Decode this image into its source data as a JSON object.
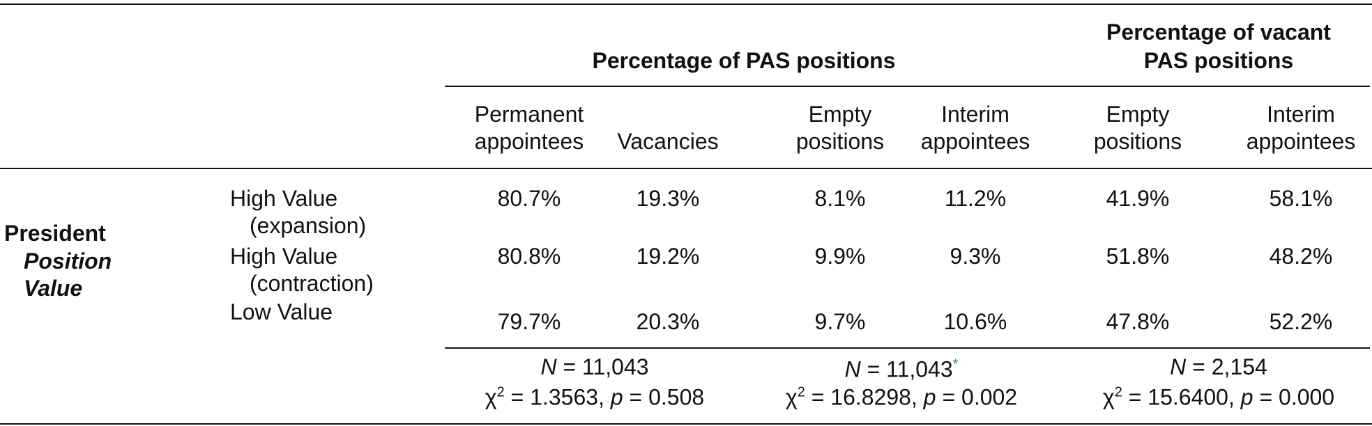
{
  "group_headers": [
    [
      "Percentage of PAS positions"
    ],
    [
      "Percentage of vacant",
      "PAS positions"
    ]
  ],
  "column_headers": [
    [
      "Permanent",
      "appointees"
    ],
    [
      "Vacancies"
    ],
    [
      "Empty",
      "positions"
    ],
    [
      "Interim",
      "appointees"
    ],
    [
      "Empty",
      "positions"
    ],
    [
      "Interim",
      "appointees"
    ]
  ],
  "row_group": [
    "President",
    "Position",
    "Value"
  ],
  "rows": [
    {
      "label": [
        "High Value",
        "(expansion)"
      ],
      "values": [
        "80.7%",
        "19.3%",
        "8.1%",
        "11.2%",
        "41.9%",
        "58.1%"
      ]
    },
    {
      "label": [
        "High Value",
        "(contraction)"
      ],
      "values": [
        "80.8%",
        "19.2%",
        "9.9%",
        "9.3%",
        "51.8%",
        "48.2%"
      ]
    },
    {
      "label": [
        "Low Value"
      ],
      "values": [
        "79.7%",
        "20.3%",
        "9.7%",
        "10.6%",
        "47.8%",
        "52.2%"
      ]
    }
  ],
  "footer": [
    {
      "n_symbol": "N",
      "n_text": " = 11,043",
      "chi": "χ",
      "chi_exp": "2",
      "stat_text": " = 1.3563, ",
      "p_symbol": "p",
      "p_text": " = 0.508"
    },
    {
      "n_symbol": "N",
      "n_text": " = 11,043",
      "note": "*",
      "chi": "χ",
      "chi_exp": "2",
      "stat_text": " = 16.8298, ",
      "p_symbol": "p",
      "p_text": " = 0.002"
    },
    {
      "n_symbol": "N",
      "n_text": " = 2,154",
      "chi": "χ",
      "chi_exp": "2",
      "stat_text": " = 15.6400, ",
      "p_symbol": "p",
      "p_text": " = 0.000"
    }
  ]
}
